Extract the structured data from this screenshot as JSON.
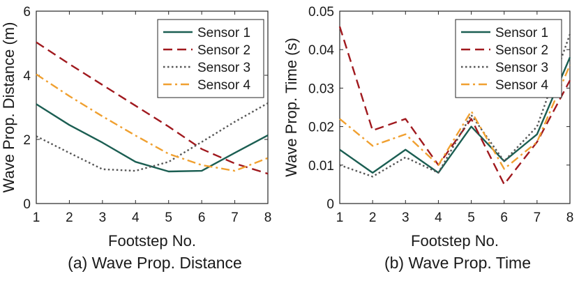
{
  "chart_data": [
    {
      "type": "line",
      "title": "",
      "caption": "(a) Wave Prop. Distance",
      "xlabel": "Footstep No.",
      "ylabel": "Wave Prop. Distance (m)",
      "x": [
        1,
        2,
        3,
        4,
        5,
        6,
        7,
        8
      ],
      "xlim": [
        1,
        8
      ],
      "ylim": [
        0,
        6
      ],
      "xticks": [
        "1",
        "2",
        "3",
        "4",
        "5",
        "6",
        "7",
        "8"
      ],
      "yticks": [
        "0",
        "2",
        "4",
        "6"
      ],
      "ytick_values": [
        0,
        2,
        4,
        6
      ],
      "legend_position": "top-right",
      "series": [
        {
          "name": "Sensor 1",
          "values": [
            3.1,
            2.45,
            1.9,
            1.3,
            1.0,
            1.02,
            1.58,
            2.13
          ],
          "color": "#1b5e52",
          "style": "solid"
        },
        {
          "name": "Sensor 2",
          "values": [
            5.03,
            4.35,
            3.7,
            3.05,
            2.4,
            1.7,
            1.25,
            0.93
          ],
          "color": "#a0191e",
          "style": "dashed"
        },
        {
          "name": "Sensor 3",
          "values": [
            2.1,
            1.58,
            1.07,
            1.02,
            1.3,
            1.92,
            2.55,
            3.13
          ],
          "color": "#555555",
          "style": "dotted"
        },
        {
          "name": "Sensor 4",
          "values": [
            4.03,
            3.35,
            2.72,
            2.12,
            1.55,
            1.2,
            1.02,
            1.42
          ],
          "color": "#f0a030",
          "style": "dashdot"
        }
      ]
    },
    {
      "type": "line",
      "title": "",
      "caption": "(b) Wave Prop. Time",
      "xlabel": "Footstep No.",
      "ylabel": "Wave Prop. Time (s)",
      "x": [
        1,
        2,
        3,
        4,
        5,
        6,
        7,
        8
      ],
      "xlim": [
        1,
        8
      ],
      "ylim": [
        0,
        0.05
      ],
      "xticks": [
        "1",
        "2",
        "3",
        "4",
        "5",
        "6",
        "7",
        "8"
      ],
      "yticks": [
        "0",
        "0.01",
        "0.02",
        "0.03",
        "0.04",
        "0.05"
      ],
      "ytick_values": [
        0,
        0.01,
        0.02,
        0.03,
        0.04,
        0.05
      ],
      "legend_position": "top-right",
      "series": [
        {
          "name": "Sensor 1",
          "values": [
            0.014,
            0.008,
            0.014,
            0.008,
            0.02,
            0.011,
            0.018,
            0.038
          ],
          "color": "#1b5e52",
          "style": "solid"
        },
        {
          "name": "Sensor 2",
          "values": [
            0.046,
            0.019,
            0.022,
            0.01,
            0.022,
            0.005,
            0.016,
            0.032
          ],
          "color": "#a0191e",
          "style": "dashed"
        },
        {
          "name": "Sensor 3",
          "values": [
            0.01,
            0.007,
            0.012,
            0.008,
            0.023,
            0.011,
            0.02,
            0.044
          ],
          "color": "#555555",
          "style": "dotted"
        },
        {
          "name": "Sensor 4",
          "values": [
            0.022,
            0.015,
            0.018,
            0.01,
            0.024,
            0.009,
            0.016,
            0.036
          ],
          "color": "#f0a030",
          "style": "dashdot"
        }
      ]
    }
  ]
}
